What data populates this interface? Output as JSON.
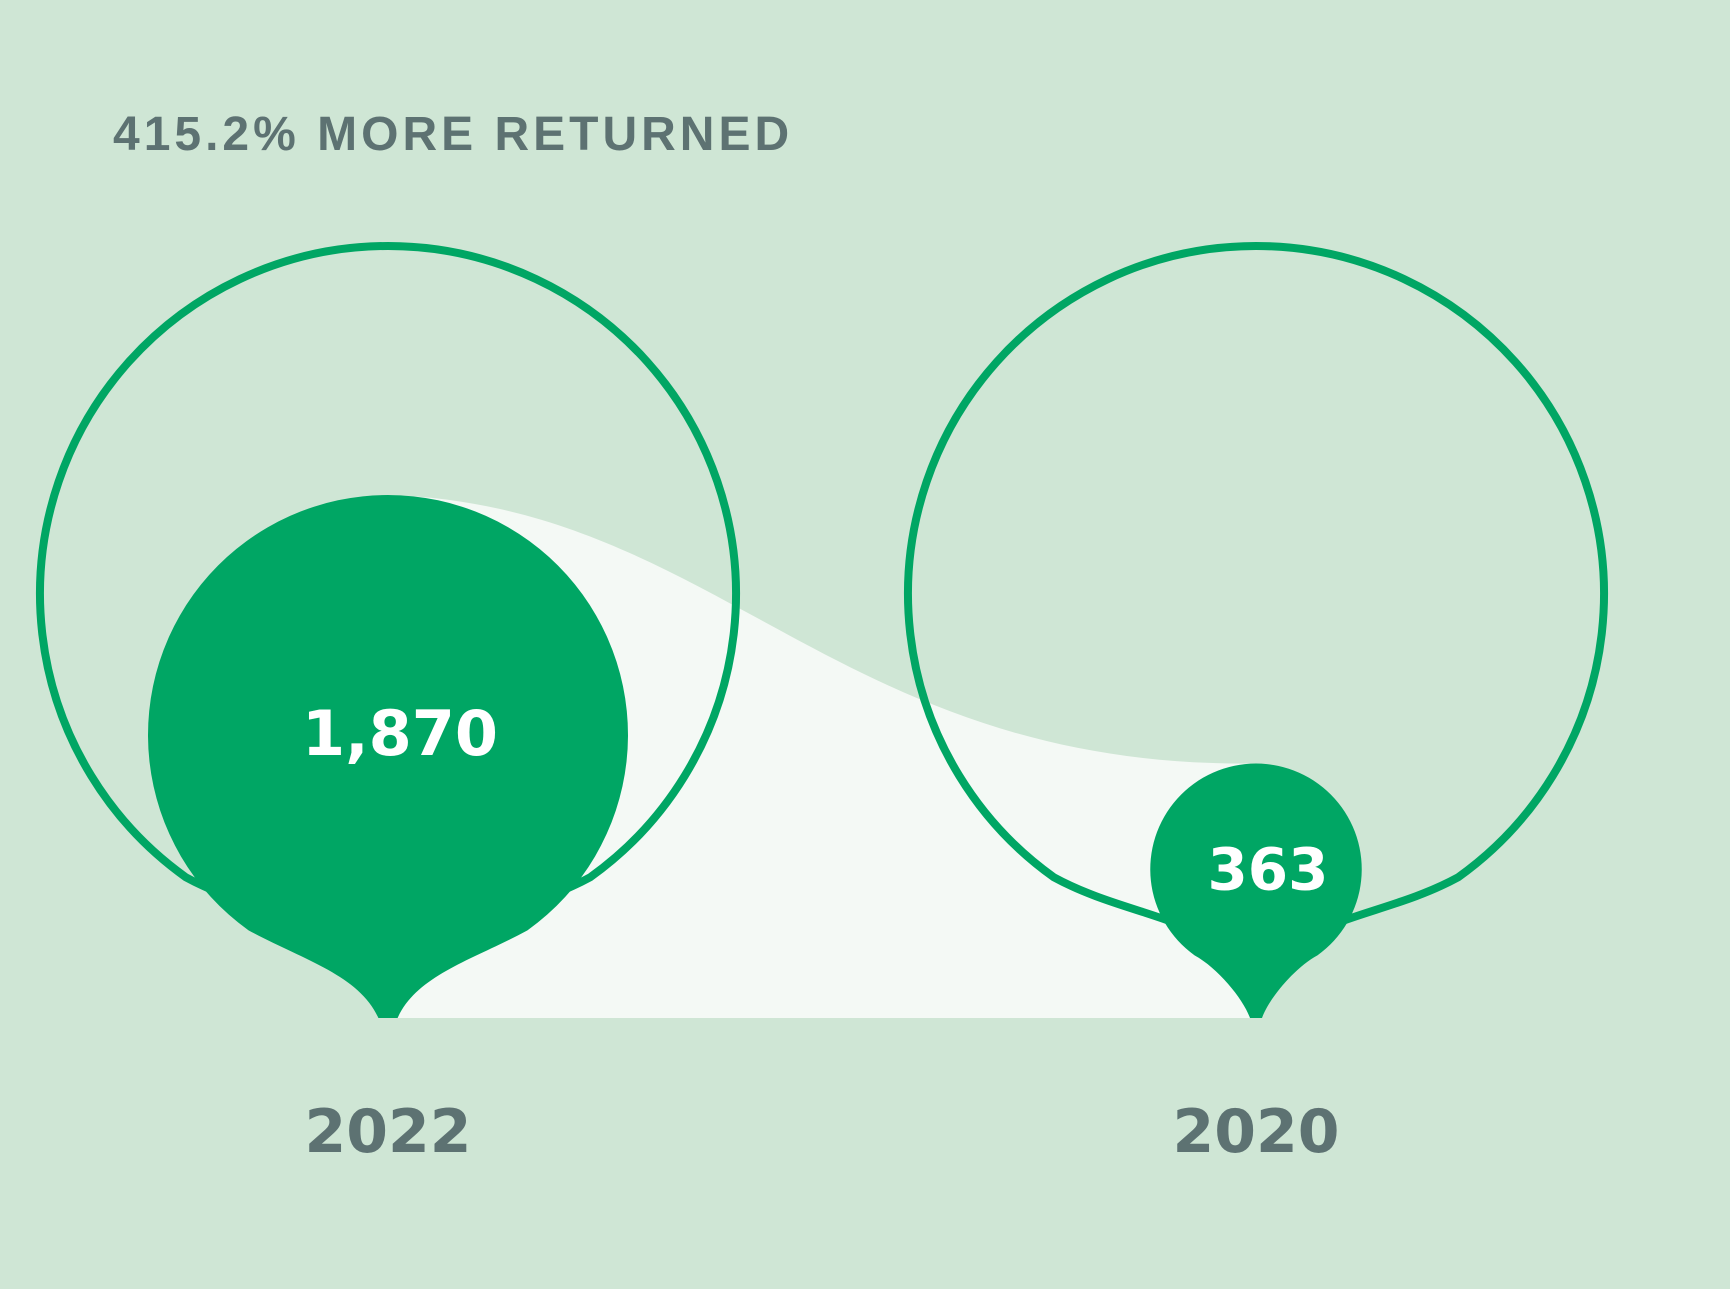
{
  "chart_data": {
    "type": "bubble-comparison",
    "headline": "415.2% MORE RETURNED",
    "categories": [
      "2022",
      "2020"
    ],
    "values": [
      1870,
      363
    ],
    "value_labels": [
      "1,870",
      "363"
    ],
    "colors": {
      "background": "#cfe6d5",
      "accent": "#00a664",
      "band": "#f4f9f5",
      "text": "#5d7272",
      "value_text": "#ffffff"
    }
  }
}
